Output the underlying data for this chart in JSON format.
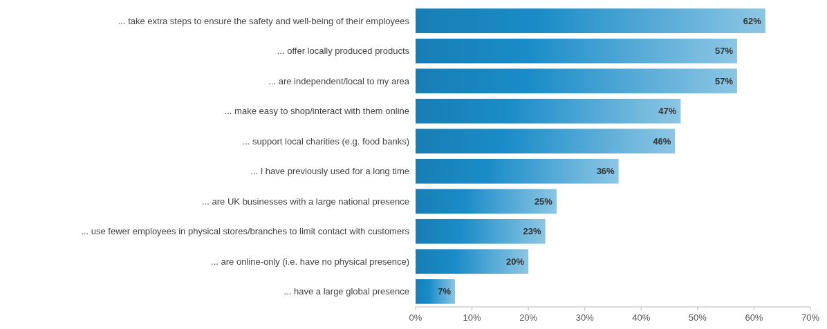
{
  "chart_data": {
    "type": "bar",
    "orientation": "horizontal",
    "categories": [
      "... take extra steps to ensure the safety and well-being of their employees",
      "... offer locally produced products",
      "... are independent/local to my area",
      "... make easy to shop/interact with them online",
      "... support local charities (e.g. food banks)",
      "... I have previously used for a long time",
      "... are UK businesses with a large national presence",
      "... use fewer employees in physical stores/branches to limit contact with customers",
      "... are online-only (i.e. have no physical presence)",
      "... have a large global presence"
    ],
    "values": [
      62,
      57,
      57,
      47,
      46,
      36,
      25,
      23,
      20,
      7
    ],
    "value_labels": [
      "62%",
      "57%",
      "57%",
      "47%",
      "46%",
      "36%",
      "25%",
      "23%",
      "20%",
      "7%"
    ],
    "color": "#1a8cc8",
    "xlim": [
      0,
      70
    ],
    "xticks": [
      {
        "value": 0,
        "label": "0%"
      },
      {
        "value": 10,
        "label": "10%"
      },
      {
        "value": 20,
        "label": "20%"
      },
      {
        "value": 30,
        "label": "30%"
      },
      {
        "value": 40,
        "label": "40%"
      },
      {
        "value": 50,
        "label": "50%"
      },
      {
        "value": 60,
        "label": "60%"
      },
      {
        "value": 70,
        "label": "70%"
      }
    ],
    "grid": false
  }
}
